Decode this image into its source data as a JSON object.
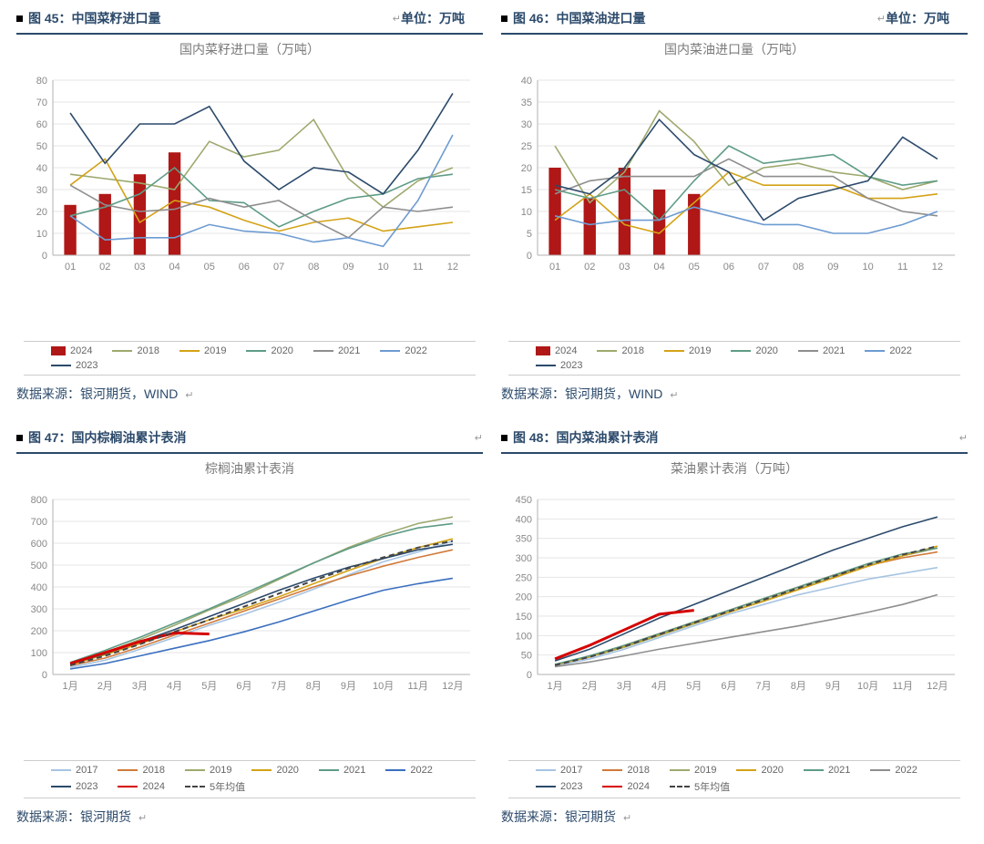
{
  "panels": [
    {
      "id": "fig45",
      "label": "图 45：中国菜籽进口量",
      "unit": "单位：万吨",
      "chart_title": "国内菜籽进口量（万吨）",
      "source": "数据来源：银河期货，WIND",
      "type": "line+bar",
      "x_labels": [
        "01",
        "02",
        "03",
        "04",
        "05",
        "06",
        "07",
        "08",
        "09",
        "10",
        "11",
        "12"
      ],
      "ylim": [
        0,
        80
      ],
      "ytick_step": 10,
      "grid_color": "#e6e6e6",
      "axis_color": "#b0b0b0",
      "title_fontsize": 14,
      "label_fontsize": 11,
      "bar_series": {
        "name": "2024",
        "color": "#b01717",
        "values": [
          23,
          28,
          37,
          47,
          null,
          null,
          null,
          null,
          null,
          null,
          null,
          null
        ],
        "bar_width": 0.35
      },
      "line_series": [
        {
          "name": "2018",
          "color": "#9ca96d",
          "values": [
            37,
            35,
            33,
            30,
            52,
            45,
            48,
            62,
            35,
            22,
            34,
            40
          ]
        },
        {
          "name": "2019",
          "color": "#d4a216",
          "values": [
            32,
            44,
            15,
            25,
            22,
            16,
            11,
            15,
            17,
            11,
            13,
            15
          ]
        },
        {
          "name": "2020",
          "color": "#5f9c86",
          "values": [
            18,
            22,
            28,
            40,
            25,
            24,
            13,
            20,
            26,
            28,
            35,
            37
          ]
        },
        {
          "name": "2021",
          "color": "#8e8e8e",
          "values": [
            32,
            23,
            20,
            21,
            26,
            22,
            25,
            16,
            8,
            22,
            20,
            22
          ]
        },
        {
          "name": "2022",
          "color": "#6d9bd1",
          "values": [
            18,
            7,
            8,
            8,
            14,
            11,
            10,
            6,
            8,
            4,
            25,
            55
          ]
        },
        {
          "name": "2023",
          "color": "#2c4a6b",
          "values": [
            65,
            42,
            60,
            60,
            68,
            43,
            30,
            40,
            38,
            28,
            48,
            74
          ]
        }
      ]
    },
    {
      "id": "fig46",
      "label": "图 46：中国菜油进口量",
      "unit": "单位：万吨",
      "chart_title": "国内菜油进口量（万吨）",
      "source": "数据来源：银河期货，WIND",
      "type": "line+bar",
      "x_labels": [
        "01",
        "02",
        "03",
        "04",
        "05",
        "06",
        "07",
        "08",
        "09",
        "10",
        "11",
        "12"
      ],
      "ylim": [
        0,
        40
      ],
      "ytick_step": 5,
      "grid_color": "#e6e6e6",
      "axis_color": "#b0b0b0",
      "title_fontsize": 14,
      "label_fontsize": 11,
      "bar_series": {
        "name": "2024",
        "color": "#b01717",
        "values": [
          20,
          13,
          20,
          15,
          14,
          null,
          null,
          null,
          null,
          null,
          null,
          null
        ],
        "bar_width": 0.35
      },
      "line_series": [
        {
          "name": "2018",
          "color": "#9ca96d",
          "values": [
            25,
            12,
            19,
            33,
            26,
            16,
            20,
            21,
            19,
            18,
            15,
            17
          ]
        },
        {
          "name": "2019",
          "color": "#d4a216",
          "values": [
            8,
            14,
            7,
            5,
            12,
            19,
            16,
            16,
            16,
            13,
            13,
            14
          ]
        },
        {
          "name": "2020",
          "color": "#5f9c86",
          "values": [
            15,
            13,
            15,
            8,
            17,
            25,
            21,
            22,
            23,
            18,
            16,
            17
          ]
        },
        {
          "name": "2021",
          "color": "#8e8e8e",
          "values": [
            14,
            17,
            18,
            18,
            18,
            22,
            18,
            18,
            18,
            13,
            10,
            9
          ]
        },
        {
          "name": "2022",
          "color": "#6d9bd1",
          "values": [
            9,
            7,
            8,
            8,
            11,
            9,
            7,
            7,
            5,
            5,
            7,
            10
          ]
        },
        {
          "name": "2023",
          "color": "#2c4a6b",
          "values": [
            16,
            14,
            20,
            31,
            23,
            19,
            8,
            13,
            15,
            17,
            27,
            22
          ]
        }
      ]
    },
    {
      "id": "fig47",
      "label": "图 47：国内棕榈油累计表消",
      "unit": "",
      "chart_title": "棕榈油累计表消",
      "source": "数据来源：银河期货",
      "type": "line+dash",
      "x_labels": [
        "1月",
        "2月",
        "3月",
        "4月",
        "5月",
        "6月",
        "7月",
        "8月",
        "9月",
        "10月",
        "11月",
        "12月"
      ],
      "ylim": [
        0,
        800
      ],
      "ytick_step": 100,
      "grid_color": "#e6e6e6",
      "axis_color": "#b0b0b0",
      "title_fontsize": 14,
      "label_fontsize": 11,
      "line_series": [
        {
          "name": "2017",
          "color": "#a7c4e2",
          "values": [
            32,
            65,
            115,
            170,
            225,
            275,
            330,
            390,
            455,
            515,
            560,
            610
          ]
        },
        {
          "name": "2018",
          "color": "#d17a3a",
          "values": [
            40,
            75,
            125,
            180,
            235,
            290,
            345,
            400,
            450,
            495,
            535,
            570
          ]
        },
        {
          "name": "2019",
          "color": "#9ca96d",
          "values": [
            50,
            100,
            160,
            225,
            295,
            360,
            435,
            510,
            580,
            640,
            690,
            720
          ]
        },
        {
          "name": "2020",
          "color": "#d4a216",
          "values": [
            45,
            90,
            140,
            195,
            250,
            300,
            355,
            415,
            475,
            530,
            580,
            620
          ]
        },
        {
          "name": "2021",
          "color": "#5f9c86",
          "values": [
            55,
            110,
            170,
            235,
            300,
            370,
            440,
            510,
            575,
            630,
            670,
            690
          ]
        },
        {
          "name": "2022",
          "color": "#3a6fbf",
          "values": [
            25,
            50,
            85,
            120,
            155,
            195,
            240,
            290,
            340,
            385,
            415,
            440
          ]
        },
        {
          "name": "2023",
          "color": "#2c4a6b",
          "values": [
            48,
            95,
            150,
            205,
            265,
            325,
            385,
            440,
            490,
            530,
            570,
            595
          ]
        },
        {
          "name": "2024",
          "color": "#d60000",
          "values": [
            50,
            100,
            150,
            190,
            185,
            null,
            null,
            null,
            null,
            null,
            null,
            null
          ],
          "width": 3
        }
      ],
      "dash_series": {
        "name": "5年均值",
        "color": "#444444",
        "values": [
          42,
          85,
          138,
          195,
          250,
          310,
          370,
          430,
          485,
          535,
          580,
          610
        ]
      }
    },
    {
      "id": "fig48",
      "label": "图 48：国内菜油累计表消",
      "unit": "",
      "chart_title": "菜油累计表消（万吨）",
      "source": "数据来源：银河期货",
      "type": "line+dash",
      "x_labels": [
        "1月",
        "2月",
        "3月",
        "4月",
        "5月",
        "6月",
        "7月",
        "8月",
        "9月",
        "10月",
        "11月",
        "12月"
      ],
      "ylim": [
        0,
        450
      ],
      "ytick_step": 50,
      "grid_color": "#e6e6e6",
      "axis_color": "#b0b0b0",
      "title_fontsize": 14,
      "label_fontsize": 11,
      "line_series": [
        {
          "name": "2017",
          "color": "#a7c4e2",
          "values": [
            22,
            40,
            65,
            95,
            125,
            155,
            180,
            205,
            225,
            245,
            260,
            275
          ]
        },
        {
          "name": "2018",
          "color": "#d17a3a",
          "values": [
            25,
            45,
            75,
            105,
            135,
            165,
            195,
            225,
            255,
            280,
            300,
            315
          ]
        },
        {
          "name": "2019",
          "color": "#9ca96d",
          "values": [
            25,
            45,
            70,
            100,
            130,
            160,
            190,
            220,
            250,
            280,
            305,
            325
          ]
        },
        {
          "name": "2020",
          "color": "#d4a216",
          "values": [
            24,
            46,
            72,
            102,
            132,
            160,
            188,
            218,
            248,
            278,
            305,
            330
          ]
        },
        {
          "name": "2021",
          "color": "#5f9c86",
          "values": [
            26,
            48,
            75,
            105,
            135,
            165,
            195,
            225,
            255,
            285,
            310,
            325
          ]
        },
        {
          "name": "2022",
          "color": "#8e8e8e",
          "values": [
            20,
            32,
            48,
            65,
            80,
            95,
            110,
            125,
            142,
            160,
            180,
            205
          ]
        },
        {
          "name": "2023",
          "color": "#2c4a6b",
          "values": [
            35,
            65,
            105,
            145,
            180,
            215,
            250,
            285,
            320,
            350,
            380,
            405
          ]
        },
        {
          "name": "2024",
          "color": "#d60000",
          "values": [
            40,
            75,
            115,
            155,
            165,
            null,
            null,
            null,
            null,
            null,
            null,
            null
          ],
          "width": 3
        }
      ],
      "dash_series": {
        "name": "5年均值",
        "color": "#444444",
        "values": [
          24,
          45,
          72,
          103,
          133,
          162,
          192,
          222,
          252,
          282,
          308,
          330
        ]
      }
    }
  ]
}
